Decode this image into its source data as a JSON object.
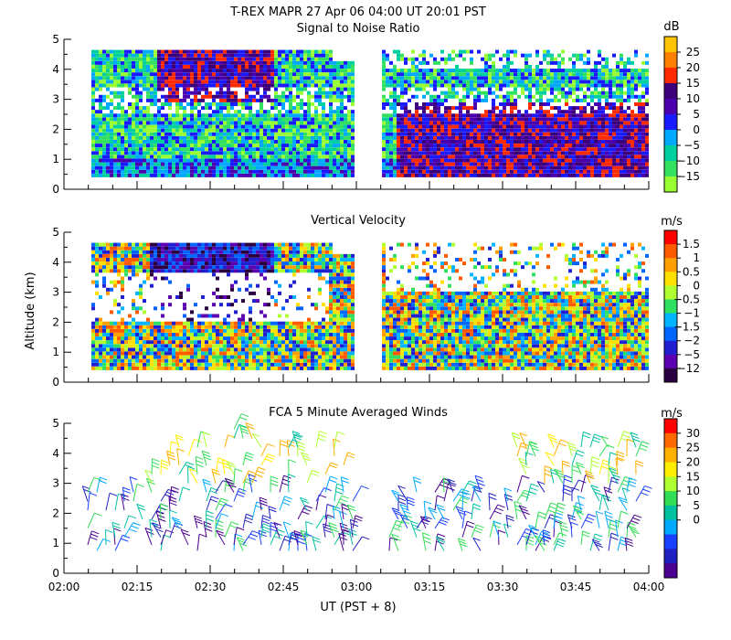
{
  "figure": {
    "title": "T-REX   MAPR 27 Apr 06   04:00 UT   20:01   PST",
    "xlabel": "UT  (PST + 8)",
    "ylabel": "Altitude (km)"
  },
  "chart_data": [
    {
      "type": "heatmap",
      "title": "Signal to Noise Ratio",
      "unit": "dB",
      "ylim": [
        0,
        5
      ],
      "yticks": [
        "0",
        "1",
        "2",
        "3",
        "4",
        "5"
      ],
      "colorbar_labels": [
        "25",
        "20",
        "15",
        "10",
        "5",
        "0",
        "−5",
        "−10",
        "−15"
      ],
      "colorbar_colors": [
        "#ffc400",
        "#ff8000",
        "#ff2a00",
        "#3c007a",
        "#4b00ad",
        "#1a1aff",
        "#00a8ff",
        "#00d0a0",
        "#33e060",
        "#99ff33"
      ]
    },
    {
      "type": "heatmap",
      "title": "Vertical Velocity",
      "unit": "m/s",
      "ylim": [
        0,
        5
      ],
      "yticks": [
        "0",
        "1",
        "2",
        "3",
        "4",
        "5"
      ],
      "colorbar_labels": [
        "1.5",
        "1",
        "0.5",
        "0",
        "−0.5",
        "−1",
        "−1.5",
        "−2",
        "−5",
        "−12"
      ],
      "colorbar_colors": [
        "#ff0000",
        "#ff5a00",
        "#ffa000",
        "#ffe000",
        "#b0ff30",
        "#30e060",
        "#00b4ff",
        "#0064ff",
        "#2020d0",
        "#5a00b0",
        "#2a0040"
      ]
    },
    {
      "type": "scatter",
      "title": "FCA 5 Minute Averaged Winds",
      "unit": "m/s",
      "ylim": [
        0,
        5
      ],
      "yticks": [
        "0",
        "1",
        "2",
        "3",
        "4",
        "5"
      ],
      "colorbar_labels": [
        "30",
        "25",
        "20",
        "15",
        "10",
        "5",
        "0"
      ],
      "colorbar_colors": [
        "#ff0000",
        "#ff6a00",
        "#ffb000",
        "#ffee00",
        "#b0ff30",
        "#33dd55",
        "#00c0a0",
        "#00a8ff",
        "#1a40ff",
        "#2020c0",
        "#4a0090"
      ]
    }
  ],
  "x_axis": {
    "tick_labels": [
      "02:00",
      "02:15",
      "02:30",
      "02:45",
      "03:00",
      "03:15",
      "03:30",
      "03:45",
      "04:00"
    ]
  }
}
